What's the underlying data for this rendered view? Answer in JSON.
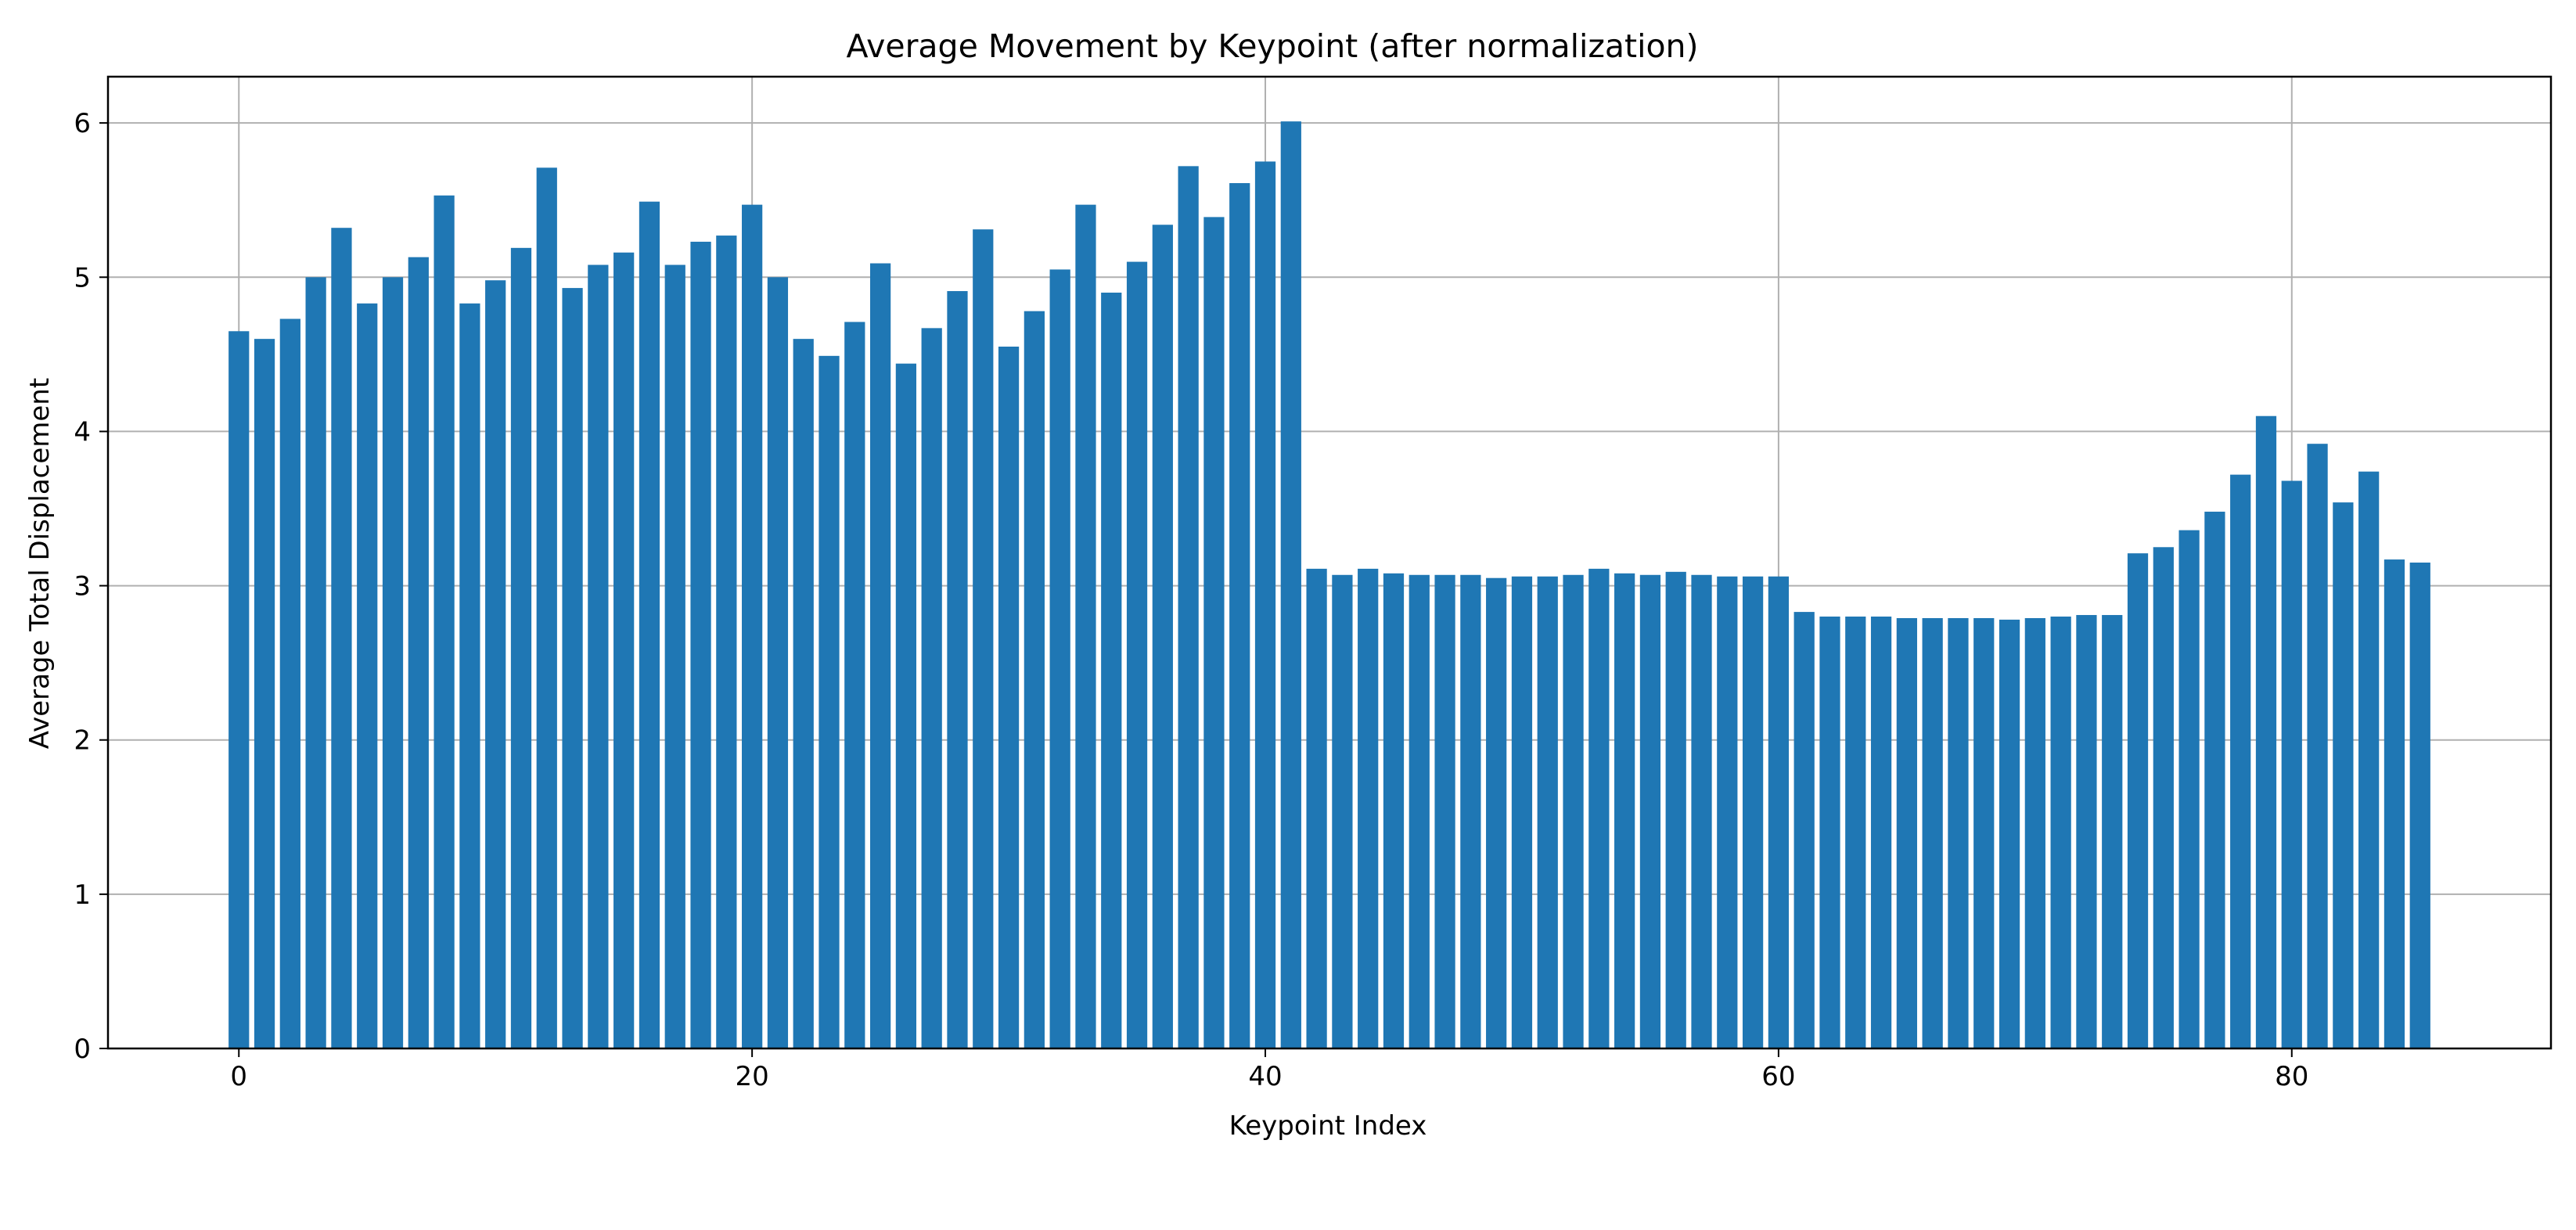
{
  "chart_data": {
    "type": "bar",
    "title": "Average Movement by Keypoint (after normalization)",
    "xlabel": "Keypoint Index",
    "ylabel": "Average Total Displacement",
    "xlim": [
      -5.1,
      90.1
    ],
    "ylim": [
      0,
      6.3
    ],
    "xticks": [
      0,
      20,
      40,
      60,
      80
    ],
    "yticks": [
      0,
      1,
      2,
      3,
      4,
      5,
      6
    ],
    "grid": true,
    "bar_color": "#1f77b4",
    "x": [
      0,
      1,
      2,
      3,
      4,
      5,
      6,
      7,
      8,
      9,
      10,
      11,
      12,
      13,
      14,
      15,
      16,
      17,
      18,
      19,
      20,
      21,
      22,
      23,
      24,
      25,
      26,
      27,
      28,
      29,
      30,
      31,
      32,
      33,
      34,
      35,
      36,
      37,
      38,
      39,
      40,
      41,
      42,
      43,
      44,
      45,
      46,
      47,
      48,
      49,
      50,
      51,
      52,
      53,
      54,
      55,
      56,
      57,
      58,
      59,
      60,
      61,
      62,
      63,
      64,
      65,
      66,
      67,
      68,
      69,
      70,
      71,
      72,
      73,
      74,
      75,
      76,
      77,
      78,
      79,
      80,
      81,
      82,
      83,
      84,
      85
    ],
    "values": [
      4.65,
      4.6,
      4.73,
      5.0,
      5.32,
      4.83,
      5.0,
      5.13,
      5.53,
      4.83,
      4.98,
      5.19,
      5.71,
      4.93,
      5.08,
      5.16,
      5.49,
      5.08,
      5.23,
      5.27,
      5.47,
      5.0,
      4.6,
      4.49,
      4.71,
      5.09,
      4.44,
      4.67,
      4.91,
      5.31,
      4.55,
      4.78,
      5.05,
      5.47,
      4.9,
      5.1,
      5.34,
      5.72,
      5.39,
      5.61,
      5.75,
      6.01,
      3.11,
      3.07,
      3.11,
      3.08,
      3.07,
      3.07,
      3.07,
      3.05,
      3.06,
      3.06,
      3.07,
      3.11,
      3.08,
      3.07,
      3.09,
      3.07,
      3.06,
      3.06,
      3.06,
      2.83,
      2.8,
      2.8,
      2.8,
      2.79,
      2.79,
      2.79,
      2.79,
      2.78,
      2.79,
      2.8,
      2.81,
      2.81,
      3.21,
      3.25,
      3.36,
      3.48,
      3.72,
      4.1,
      3.68,
      3.92,
      3.54,
      3.74,
      3.17,
      3.15
    ]
  }
}
